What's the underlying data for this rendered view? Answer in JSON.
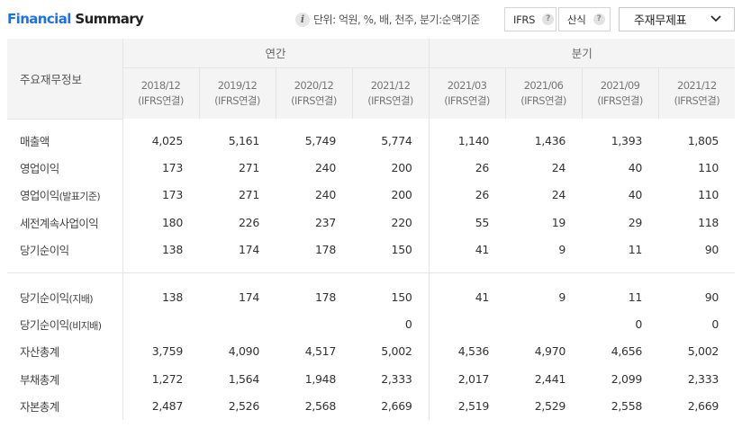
{
  "header": {
    "title_accent": "Financial",
    "title_rest": " Summary",
    "unit_text": "단위: 억원, %, 배, 천주, 분기:순액기준",
    "ifrs_label": "IFRS",
    "formula_label": "산식",
    "help_symbol": "?",
    "dropdown_value": "주재무제표"
  },
  "table": {
    "main_label": "주요재무정보",
    "group_annual": "연간",
    "group_quarter": "분기",
    "periods": [
      {
        "date": "2018/12",
        "basis": "(IFRS연결)"
      },
      {
        "date": "2019/12",
        "basis": "(IFRS연결)"
      },
      {
        "date": "2020/12",
        "basis": "(IFRS연결)"
      },
      {
        "date": "2021/12",
        "basis": "(IFRS연결)"
      },
      {
        "date": "2021/03",
        "basis": "(IFRS연결)"
      },
      {
        "date": "2021/06",
        "basis": "(IFRS연결)"
      },
      {
        "date": "2021/09",
        "basis": "(IFRS연결)"
      },
      {
        "date": "2021/12",
        "basis": "(IFRS연결)"
      }
    ],
    "rows_top": [
      {
        "label": "매출액",
        "suffix": "",
        "values": [
          "4,025",
          "5,161",
          "5,749",
          "5,774",
          "1,140",
          "1,436",
          "1,393",
          "1,805"
        ]
      },
      {
        "label": "영업이익",
        "suffix": "",
        "values": [
          "173",
          "271",
          "240",
          "200",
          "26",
          "24",
          "40",
          "110"
        ]
      },
      {
        "label": "영업이익",
        "suffix": "(발표기준)",
        "values": [
          "173",
          "271",
          "240",
          "200",
          "26",
          "24",
          "40",
          "110"
        ]
      },
      {
        "label": "세전계속사업이익",
        "suffix": "",
        "values": [
          "180",
          "226",
          "237",
          "220",
          "55",
          "19",
          "29",
          "118"
        ]
      },
      {
        "label": "당기순이익",
        "suffix": "",
        "values": [
          "138",
          "174",
          "178",
          "150",
          "41",
          "9",
          "11",
          "90"
        ]
      }
    ],
    "rows_bottom": [
      {
        "label": "당기순이익",
        "suffix": "(지배)",
        "values": [
          "138",
          "174",
          "178",
          "150",
          "41",
          "9",
          "11",
          "90"
        ]
      },
      {
        "label": "당기순이익",
        "suffix": "(비지배)",
        "values": [
          "",
          "",
          "",
          "0",
          "",
          "",
          "0",
          "0"
        ]
      },
      {
        "label": "자산총계",
        "suffix": "",
        "values": [
          "3,759",
          "4,090",
          "4,517",
          "5,002",
          "4,536",
          "4,970",
          "4,656",
          "5,002"
        ]
      },
      {
        "label": "부채총계",
        "suffix": "",
        "values": [
          "1,272",
          "1,564",
          "1,948",
          "2,333",
          "2,017",
          "2,441",
          "2,099",
          "2,333"
        ]
      },
      {
        "label": "자본총계",
        "suffix": "",
        "values": [
          "2,487",
          "2,526",
          "2,568",
          "2,669",
          "2,519",
          "2,529",
          "2,558",
          "2,669"
        ]
      }
    ]
  }
}
